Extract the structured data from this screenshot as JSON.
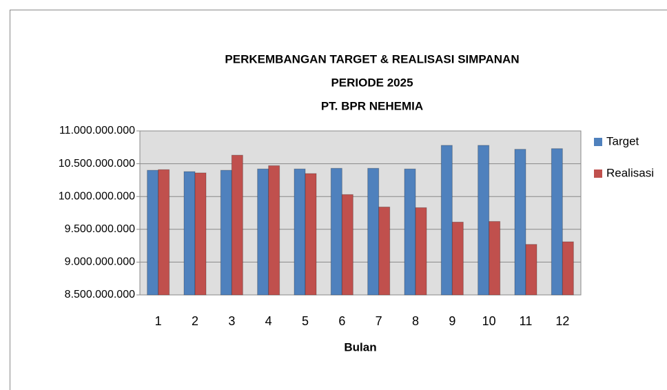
{
  "chart_data": {
    "type": "bar",
    "title": [
      "PERKEMBANGAN TARGET & REALISASI SIMPANAN",
      "PERIODE 2025",
      "PT. BPR NEHEMIA"
    ],
    "x_label": "Bulan",
    "categories": [
      "1",
      "2",
      "3",
      "4",
      "5",
      "6",
      "7",
      "8",
      "9",
      "10",
      "11",
      "12"
    ],
    "series": [
      {
        "name": "Target",
        "color": "#4f81bd",
        "values": [
          10400000000,
          10380000000,
          10400000000,
          10420000000,
          10420000000,
          10430000000,
          10430000000,
          10420000000,
          10780000000,
          10780000000,
          10720000000,
          10730000000
        ]
      },
      {
        "name": "Realisasi",
        "color": "#c0504d",
        "values": [
          10410000000,
          10360000000,
          10630000000,
          10470000000,
          10350000000,
          10030000000,
          9840000000,
          9830000000,
          9610000000,
          9620000000,
          9270000000,
          9310000000
        ]
      }
    ],
    "ylim": [
      8500000000,
      11000000000
    ],
    "yticks": [
      {
        "value": 8500000000,
        "label": "8.500.000.000"
      },
      {
        "value": 9000000000,
        "label": "9.000.000.000"
      },
      {
        "value": 9500000000,
        "label": "9.500.000.000"
      },
      {
        "value": 10000000000,
        "label": "10.000.000.000"
      },
      {
        "value": 10500000000,
        "label": "10.500.000.000"
      },
      {
        "value": 11000000000,
        "label": "11.000.000.000"
      }
    ],
    "grid": true,
    "legend": "right"
  }
}
